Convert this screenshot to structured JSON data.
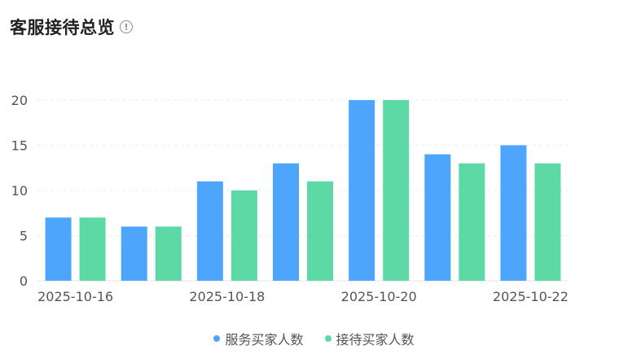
{
  "header": {
    "title": "客服接待总览",
    "info_icon": "info-circle-icon"
  },
  "colors": {
    "series_1": "#4da6fb",
    "series_2": "#5cd9a5",
    "grid": "#e8ecf2",
    "axis_text": "#555555"
  },
  "chart_data": {
    "type": "bar",
    "categories": [
      "2025-10-16",
      "2025-10-17",
      "2025-10-18",
      "2025-10-19",
      "2025-10-20",
      "2025-10-21",
      "2025-10-22"
    ],
    "x_tick_labels": [
      "2025-10-16",
      "2025-10-18",
      "2025-10-20",
      "2025-10-22"
    ],
    "series": [
      {
        "name": "服务买家人数",
        "values": [
          7,
          6,
          11,
          13,
          20,
          14,
          15
        ]
      },
      {
        "name": "接待买家人数",
        "values": [
          7,
          6,
          10,
          11,
          20,
          13,
          13
        ]
      }
    ],
    "ylim": [
      0,
      20
    ],
    "y_ticks": [
      0,
      5,
      10,
      15,
      20
    ],
    "grid": true,
    "legend": "bottom-center"
  }
}
